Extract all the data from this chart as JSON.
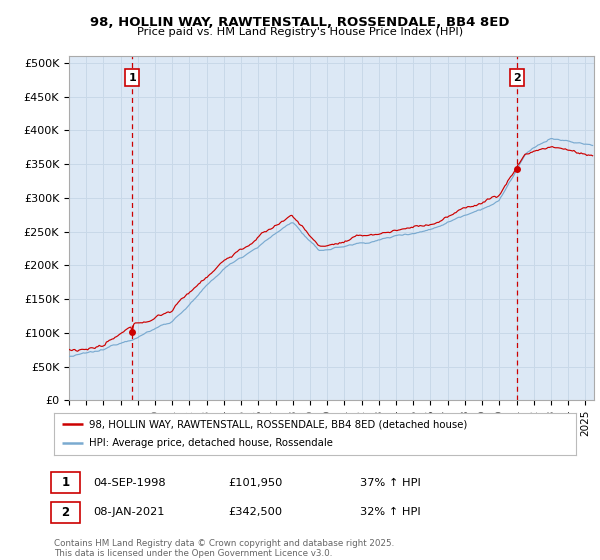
{
  "title_line1": "98, HOLLIN WAY, RAWTENSTALL, ROSSENDALE, BB4 8ED",
  "title_line2": "Price paid vs. HM Land Registry's House Price Index (HPI)",
  "ylabel_ticks": [
    "£0",
    "£50K",
    "£100K",
    "£150K",
    "£200K",
    "£250K",
    "£300K",
    "£350K",
    "£400K",
    "£450K",
    "£500K"
  ],
  "ytick_values": [
    0,
    50000,
    100000,
    150000,
    200000,
    250000,
    300000,
    350000,
    400000,
    450000,
    500000
  ],
  "ylim": [
    0,
    510000
  ],
  "sale1_date": "04-SEP-1998",
  "sale1_price": 101950,
  "sale1_label": "37% ↑ HPI",
  "sale1_year": 1998.67,
  "sale2_date": "08-JAN-2021",
  "sale2_price": 342500,
  "sale2_label": "32% ↑ HPI",
  "sale2_year": 2021.03,
  "line1_color": "#cc0000",
  "line2_color": "#7aaad0",
  "vline_color": "#cc0000",
  "grid_color": "#c8d8e8",
  "bg_color": "#ffffff",
  "chart_bg": "#dce8f5",
  "legend_label1": "98, HOLLIN WAY, RAWTENSTALL, ROSSENDALE, BB4 8ED (detached house)",
  "legend_label2": "HPI: Average price, detached house, Rossendale",
  "footnote": "Contains HM Land Registry data © Crown copyright and database right 2025.\nThis data is licensed under the Open Government Licence v3.0.",
  "xlim_start": 1995.0,
  "xlim_end": 2025.5
}
